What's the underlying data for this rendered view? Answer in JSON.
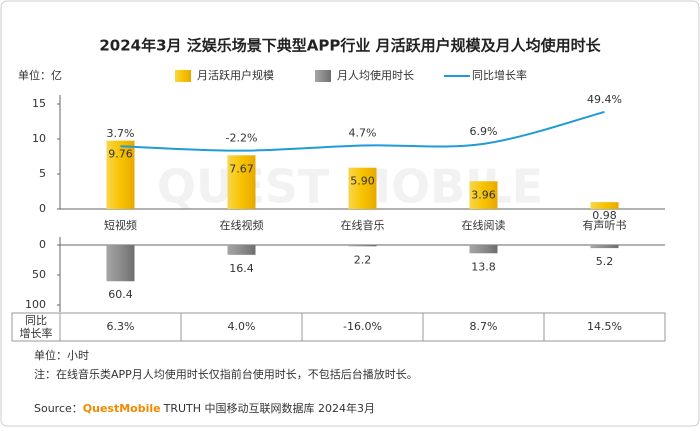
{
  "title": "2024年3月 泛娱乐场景下典型APP行业 月活跃用户规模及月人均使用时长",
  "watermark": "QUEST MOBILE",
  "chart_data": [
    {
      "type": "bar",
      "unit": "单位：亿",
      "categories": [
        "短视频",
        "在线视频",
        "在线音乐",
        "在线阅读",
        "有声听书"
      ],
      "series": [
        {
          "name": "月活跃用户规模",
          "color": "#f7c300",
          "values": [
            9.76,
            7.67,
            5.9,
            3.96,
            0.98
          ],
          "value_labels": [
            "9.76",
            "7.67",
            "5.90",
            "3.96",
            "0.98"
          ]
        },
        {
          "name": "同比增长率",
          "type": "line",
          "axis": "y2",
          "color": "#1f9bd7",
          "values": [
            3.7,
            -2.2,
            4.7,
            6.9,
            49.4
          ],
          "value_labels": [
            "3.7%",
            "-2.2%",
            "4.7%",
            "6.9%",
            "49.4%"
          ]
        }
      ],
      "ylim": [
        0,
        15
      ],
      "yticks": [
        0,
        5,
        10,
        15
      ],
      "y2lim": [
        -80,
        60
      ]
    },
    {
      "type": "bar",
      "unit": "单位：小时",
      "inverted": true,
      "series": [
        {
          "name": "月人均使用时长",
          "color": "#8c8c8c",
          "values": [
            60.4,
            16.4,
            2.2,
            13.8,
            5.2
          ]
        }
      ],
      "ylim": [
        0,
        100
      ],
      "yticks": [
        0,
        50,
        100
      ]
    }
  ],
  "yoy_table": {
    "header": [
      "同比",
      "增长率"
    ],
    "cells": [
      "6.3%",
      "4.0%",
      "-16.0%",
      "8.7%",
      "14.5%"
    ]
  },
  "note": "注：在线音乐类APP月人均使用时长仅指前台使用时长，不包括后台播放时长。",
  "source": {
    "label": "Source：",
    "brand": "QuestMobile",
    "text": "TRUTH 中国移动互联网数据库 2024年3月"
  }
}
